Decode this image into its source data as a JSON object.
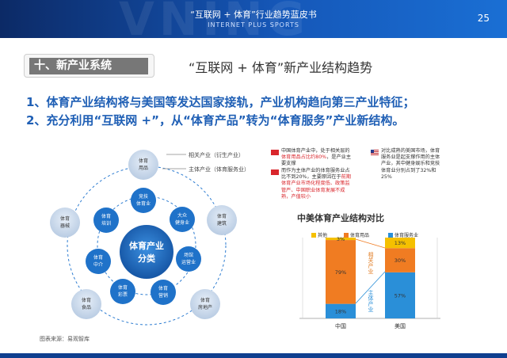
{
  "header": {
    "title": "“互联网 + 体育”行业趋势蓝皮书",
    "subtitle": "INTERNET PLUS SPORTS",
    "page_number": "25",
    "watermark": "VNING"
  },
  "section": {
    "label": "十、新产业系统"
  },
  "slide_title": "“互联网 + 体育”新产业结构趋势",
  "leads": [
    "1、体育产业结构将与美国等发达国家接轨，产业机构趋向第三产业特征；",
    "2、充分利用“互联网 +”，从“体育产品”转为“体育服务”产业新结构。"
  ],
  "diagram": {
    "center": [
      "体育产业",
      "分类"
    ],
    "legend": {
      "related": "相关产业（衍生产业）",
      "main": "主体产业（体育服务业）"
    },
    "inner_nodes": [
      {
        "lines": [
          "竞技",
          "体育业"
        ]
      },
      {
        "lines": [
          "大众",
          "健身业"
        ]
      },
      {
        "lines": [
          "场馆",
          "运营业"
        ]
      },
      {
        "lines": [
          "体育",
          "营销"
        ]
      },
      {
        "lines": [
          "体育",
          "彩票"
        ]
      },
      {
        "lines": [
          "体育",
          "中介"
        ]
      },
      {
        "lines": [
          "体育",
          "培训"
        ]
      }
    ],
    "outer_nodes": [
      {
        "lines": [
          "体育",
          "用品"
        ]
      },
      {
        "lines": [
          "体育",
          "建筑"
        ]
      },
      {
        "lines": [
          "体育",
          "房地产"
        ]
      },
      {
        "lines": [
          "体育",
          "食品"
        ]
      },
      {
        "lines": [
          "体育",
          "器械"
        ]
      }
    ]
  },
  "notes": {
    "china": {
      "l1": "中国体育产业中，处于相关层的",
      "l2_red": "体育用品占比约80%",
      "l2_tail": "，是产业主",
      "l3": "要支撑",
      "l4": "而作为主体产业的体育服务业占",
      "l5": "比不到20%，主要原因在于",
      "l5_red": "前期",
      "l6_red": "体育产业市场化程度低、政策监",
      "l7_red": "管严、中国职业体育发展不成",
      "l8_red": "熟，产值较小"
    },
    "usa": {
      "l1": "对比成熟的美国市场，体育",
      "l2": "服务业是起支撑作用的主体",
      "l3": "产业，其中健身娱乐和竞技",
      "l4": "体育业分别占到了32%和",
      "l5": "25%"
    }
  },
  "chart_data": {
    "type": "bar",
    "stacked": true,
    "title": "中美体育产业结构对比",
    "categories": [
      "中国",
      "美国"
    ],
    "legend_position": "top",
    "series": [
      {
        "name": "其他",
        "color": "#f5c000",
        "values": [
          3,
          13
        ]
      },
      {
        "name": "体育用品",
        "color": "#f07c22",
        "values": [
          79,
          30
        ]
      },
      {
        "name": "体育服务业",
        "color": "#2a8fd8",
        "values": [
          18,
          57
        ]
      }
    ],
    "value_labels": [
      [
        "3%",
        "79%",
        "18%"
      ],
      [
        "13%",
        "30%",
        "57%"
      ]
    ],
    "annotations": {
      "related": "相关产业",
      "main": "主体产业"
    },
    "ylim": [
      0,
      100
    ]
  },
  "source": "图表来源：易观智库",
  "colors": {
    "header": "#1557b8",
    "accent_blue": "#1f5fb5",
    "red": "#d9262c",
    "node_blue": "#1f72c9",
    "node_light": "#c8d8ec"
  }
}
